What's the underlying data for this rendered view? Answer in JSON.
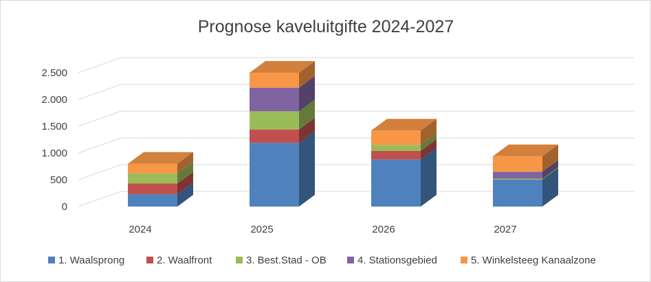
{
  "chart_data": {
    "type": "bar",
    "stacked": true,
    "style": "3d-column",
    "title": "Prognose kaveluitgifte 2024-2027",
    "xlabel": "",
    "ylabel": "",
    "categories": [
      "2024",
      "2025",
      "2026",
      "2027"
    ],
    "ylim": [
      0,
      2500
    ],
    "yticks": [
      0,
      500,
      1000,
      1500,
      2000,
      2500
    ],
    "ytick_labels": [
      "0",
      "500",
      "1.000",
      "1.500",
      "2.000",
      "2.500"
    ],
    "grid": true,
    "legend_position": "bottom",
    "series": [
      {
        "name": "1. Waalsprong",
        "color": "#4F81BD",
        "values": [
          230,
          1190,
          880,
          500
        ]
      },
      {
        "name": "2. Waalfront",
        "color": "#C0504D",
        "values": [
          200,
          250,
          160,
          0
        ]
      },
      {
        "name": "3. Best.Stad - OB",
        "color": "#9BBB59",
        "values": [
          190,
          340,
          110,
          20
        ]
      },
      {
        "name": "4. Stationsgebied",
        "color": "#8064A2",
        "values": [
          0,
          440,
          0,
          130
        ]
      },
      {
        "name": "5. Winkelsteeg Kanaalzone",
        "color": "#F79646",
        "values": [
          180,
          280,
          270,
          290
        ]
      }
    ]
  }
}
